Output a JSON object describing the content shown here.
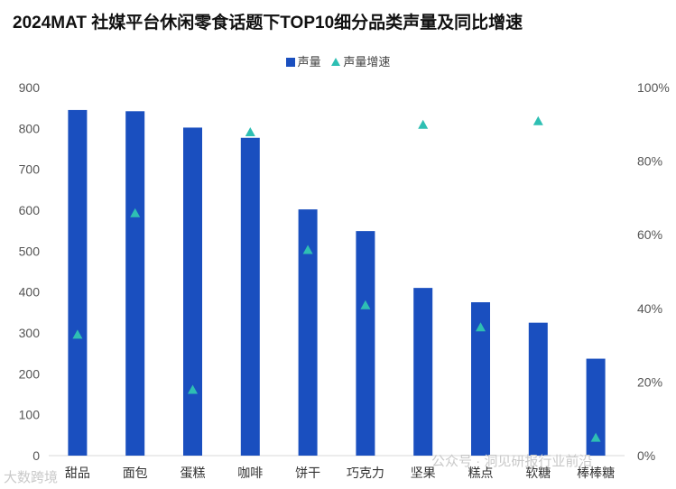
{
  "title": "2024MAT 社媒平台休闲零食话题下TOP10细分品类声量及同比增速",
  "watermark_left": "大数跨境",
  "watermark_right": "公众号 · 洞见研报行业前沿",
  "colors": {
    "bar": "#1a4fbf",
    "marker": "#2ebfb3",
    "grid": "#d9d9d9",
    "tick_text": "#555555"
  },
  "chart_data": {
    "type": "bar",
    "title": "2024MAT 社媒平台休闲零食话题下TOP10细分品类声量及同比增速",
    "legend_position": "top-center",
    "grid": false,
    "categories": [
      "甜品",
      "面包",
      "蛋糕",
      "咖啡",
      "饼干",
      "巧克力",
      "坚果",
      "糕点",
      "软糖",
      "棒棒糖"
    ],
    "series": [
      {
        "name": "声量",
        "type": "bar",
        "axis": "left",
        "values": [
          845,
          842,
          802,
          777,
          602,
          549,
          410,
          375,
          325,
          237
        ]
      },
      {
        "name": "声量增速",
        "type": "scatter",
        "axis": "right",
        "marker": "triangle",
        "values": [
          0.33,
          0.66,
          0.18,
          0.88,
          0.56,
          0.41,
          0.9,
          0.35,
          0.91,
          0.05
        ]
      }
    ],
    "y_left": {
      "min": 0,
      "max": 900,
      "ticks": [
        "0",
        "100",
        "200",
        "300",
        "400",
        "500",
        "600",
        "700",
        "800",
        "900"
      ]
    },
    "y_right": {
      "min": 0,
      "max": 1.0,
      "ticks": [
        "0%",
        "20%",
        "40%",
        "60%",
        "80%",
        "100%"
      ]
    }
  }
}
